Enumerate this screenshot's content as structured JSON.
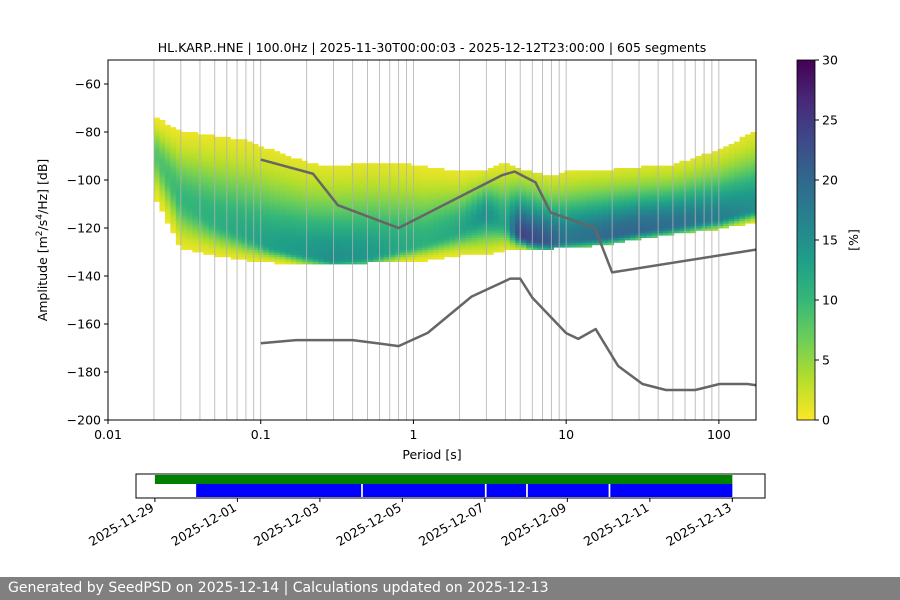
{
  "figure": {
    "title": "HL.KARP..HNE | 100.0Hz | 2025-11-30T00:00:03 - 2025-12-12T23:00:00 | 605 segments",
    "footer_generated": "Generated by SeedPSD on 2025-12-14",
    "footer_separator": " | ",
    "footer_updated": "Calculations updated on 2025-12-13"
  },
  "chart_data": [
    {
      "type": "heatmap",
      "title": "HL.KARP..HNE | 100.0Hz | 2025-11-30T00:00:03 - 2025-12-12T23:00:00 | 605 segments",
      "xlabel": "Period [s]",
      "ylabel_prefix": "Amplitude [m",
      "ylabel_mid1": "/s",
      "ylabel_mid2": "/Hz] [dB]",
      "ylabel_sup1": "2",
      "ylabel_sup2": "4",
      "xscale": "log",
      "xlim": [
        0.01,
        175
      ],
      "ylim": [
        -200,
        -50
      ],
      "x_ticks": [
        0.01,
        0.1,
        1,
        10,
        100
      ],
      "x_tick_labels": [
        "0.01",
        "0.1",
        "1",
        "10",
        "100"
      ],
      "y_ticks": [
        -200,
        -180,
        -160,
        -140,
        -120,
        -100,
        -80,
        -60
      ],
      "y_tick_labels": [
        "−200",
        "−180",
        "−160",
        "−140",
        "−120",
        "−100",
        "−80",
        "−60"
      ],
      "grid": "vertical, log-decade minor lines",
      "colorbar": {
        "label": "[%]",
        "range": [
          0,
          30
        ],
        "ticks": [
          0,
          5,
          10,
          15,
          20,
          25,
          30
        ],
        "tick_labels": [
          "0",
          "5",
          "10",
          "15",
          "20",
          "25",
          "30"
        ],
        "colormap": "viridis_r",
        "colors": [
          "#fde725",
          "#b5de2b",
          "#6ece58",
          "#35b779",
          "#1f9e89",
          "#26828e",
          "#31688e",
          "#3e4989",
          "#482878",
          "#440154"
        ]
      },
      "mode_curve": {
        "period": [
          0.02,
          0.03,
          0.05,
          0.08,
          0.12,
          0.2,
          0.3,
          0.5,
          0.8,
          1.2,
          2,
          3,
          4,
          5,
          6,
          8,
          10,
          15,
          20,
          30,
          50,
          100,
          175
        ],
        "db": [
          -88,
          -108,
          -117,
          -123,
          -128,
          -131,
          -133,
          -132,
          -129,
          -126,
          -121,
          -114,
          -118,
          -123,
          -125,
          -126,
          -125,
          -124,
          -123,
          -121,
          -119,
          -116,
          -112
        ],
        "upper": [
          -74,
          -80,
          -82,
          -84,
          -88,
          -93,
          -95,
          -93,
          -93,
          -95,
          -97,
          -96,
          -93,
          -96,
          -97,
          -99,
          -97,
          -96,
          -96,
          -95,
          -94,
          -88,
          -80
        ],
        "lower": [
          -106,
          -128,
          -131,
          -133,
          -134,
          -135,
          -135,
          -134,
          -134,
          -133,
          -131,
          -131,
          -129,
          -129,
          -129,
          -128,
          -128,
          -127,
          -126,
          -124,
          -122,
          -120,
          -117
        ],
        "peak_percent": [
          8,
          10,
          11,
          12,
          13,
          14,
          15,
          14,
          12,
          11,
          12,
          15,
          12,
          24,
          23,
          21,
          18,
          19,
          20,
          20,
          19,
          17,
          15
        ]
      },
      "nhnm": {
        "period": [
          0.1,
          0.22,
          0.32,
          0.8,
          3.8,
          4.6,
          6.3,
          7.9,
          15.4,
          20,
          175
        ],
        "db": [
          -91.5,
          -97.4,
          -110.5,
          -120,
          -98,
          -96.5,
          -101,
          -113.5,
          -120,
          -138.5,
          -129
        ]
      },
      "nlnm": {
        "period": [
          0.1,
          0.17,
          0.4,
          0.8,
          1.24,
          2.4,
          4.3,
          5,
          6,
          10,
          12,
          15.6,
          21.9,
          31.6,
          45,
          70,
          101,
          154,
          175
        ],
        "db": [
          -168,
          -166.7,
          -166.7,
          -169.2,
          -163.7,
          -148.6,
          -141.1,
          -141.1,
          -149,
          -163.8,
          -166.2,
          -162.1,
          -177.5,
          -185,
          -187.5,
          -187.5,
          -185,
          -185,
          -185.5
        ]
      }
    },
    {
      "type": "timeline",
      "dates": [
        "2025-11-29",
        "2025-12-01",
        "2025-12-03",
        "2025-12-05",
        "2025-12-07",
        "2025-12-09",
        "2025-12-11",
        "2025-12-13"
      ],
      "xlim": [
        "2025-11-28T13:00",
        "2025-12-13T19:00"
      ],
      "green_bar": [
        "2025-11-29T00:00",
        "2025-12-13T00:00"
      ],
      "blue_segments": [
        [
          "2025-11-30T00:00",
          "2025-12-04T00:00"
        ],
        [
          "2025-12-04T01:00",
          "2025-12-07T00:00"
        ],
        [
          "2025-12-07T01:00",
          "2025-12-08T00:00"
        ],
        [
          "2025-12-08T01:00",
          "2025-12-10T00:00"
        ],
        [
          "2025-12-10T01:00",
          "2025-12-13T00:00"
        ]
      ],
      "colors": {
        "availability": "#008000",
        "segments": "#0000ff"
      }
    }
  ]
}
